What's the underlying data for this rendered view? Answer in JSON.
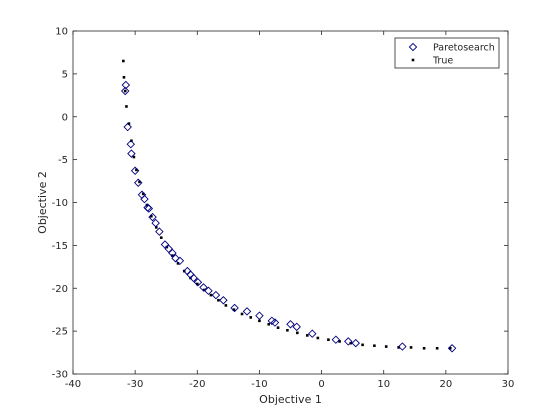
{
  "chart_data": {
    "type": "scatter",
    "xlabel": "Objective 1",
    "ylabel": "Objective 2",
    "xlim": [
      -40,
      30
    ],
    "ylim": [
      -30,
      10
    ],
    "xticks": [
      "-40",
      "-30",
      "-20",
      "-10",
      "0",
      "10",
      "20",
      "30"
    ],
    "yticks": [
      "10",
      "5",
      "0",
      "-5",
      "-10",
      "-15",
      "-20",
      "-25",
      "-30"
    ],
    "grid": false,
    "legend_position": "top-right",
    "series": [
      {
        "name": "Paretosearch",
        "marker": "diamond-open",
        "color": "#00007f",
        "points": [
          [
            -31.5,
            3.7
          ],
          [
            -31.6,
            3.0
          ],
          [
            -31.2,
            -1.2
          ],
          [
            -30.7,
            -3.2
          ],
          [
            -30.6,
            -4.3
          ],
          [
            -30.0,
            -6.3
          ],
          [
            -29.5,
            -7.7
          ],
          [
            -28.9,
            -9.1
          ],
          [
            -28.5,
            -9.6
          ],
          [
            -28.0,
            -10.6
          ],
          [
            -27.8,
            -10.7
          ],
          [
            -27.2,
            -11.7
          ],
          [
            -26.7,
            -12.4
          ],
          [
            -26.1,
            -13.4
          ],
          [
            -25.2,
            -14.9
          ],
          [
            -24.6,
            -15.4
          ],
          [
            -24.0,
            -15.9
          ],
          [
            -23.5,
            -16.5
          ],
          [
            -22.8,
            -16.8
          ],
          [
            -21.6,
            -18.0
          ],
          [
            -21.1,
            -18.4
          ],
          [
            -20.6,
            -18.8
          ],
          [
            -19.9,
            -19.3
          ],
          [
            -19.0,
            -19.9
          ],
          [
            -18.2,
            -20.3
          ],
          [
            -17.0,
            -20.8
          ],
          [
            -15.8,
            -21.4
          ],
          [
            -14.0,
            -22.3
          ],
          [
            -12.0,
            -22.7
          ],
          [
            -10.0,
            -23.2
          ],
          [
            -8.0,
            -23.8
          ],
          [
            -7.5,
            -24.0
          ],
          [
            -5.0,
            -24.2
          ],
          [
            -4.0,
            -24.5
          ],
          [
            -1.5,
            -25.3
          ],
          [
            2.3,
            -26.0
          ],
          [
            4.3,
            -26.2
          ],
          [
            5.5,
            -26.4
          ],
          [
            13.0,
            -26.8
          ],
          [
            21.0,
            -27.0
          ]
        ]
      },
      {
        "name": "True",
        "marker": "point",
        "color": "#000000",
        "points": [
          [
            -31.9,
            6.5
          ],
          [
            -31.8,
            4.6
          ],
          [
            -31.6,
            3.0
          ],
          [
            -31.4,
            1.2
          ],
          [
            -31.0,
            -0.8
          ],
          [
            -30.6,
            -2.8
          ],
          [
            -30.2,
            -4.7
          ],
          [
            -29.8,
            -6.2
          ],
          [
            -29.3,
            -7.6
          ],
          [
            -28.7,
            -9.0
          ],
          [
            -28.1,
            -10.3
          ],
          [
            -27.4,
            -11.6
          ],
          [
            -26.6,
            -12.9
          ],
          [
            -25.8,
            -14.1
          ],
          [
            -24.9,
            -15.2
          ],
          [
            -24.0,
            -16.2
          ],
          [
            -23.1,
            -17.1
          ],
          [
            -22.1,
            -18.0
          ],
          [
            -21.1,
            -18.8
          ],
          [
            -20.0,
            -19.5
          ],
          [
            -18.9,
            -20.2
          ],
          [
            -17.8,
            -20.8
          ],
          [
            -16.6,
            -21.4
          ],
          [
            -15.4,
            -22.0
          ],
          [
            -14.1,
            -22.5
          ],
          [
            -12.8,
            -23.0
          ],
          [
            -11.4,
            -23.4
          ],
          [
            -10.0,
            -23.8
          ],
          [
            -8.5,
            -24.2
          ],
          [
            -7.0,
            -24.6
          ],
          [
            -5.5,
            -24.9
          ],
          [
            -3.9,
            -25.2
          ],
          [
            -2.3,
            -25.5
          ],
          [
            -0.6,
            -25.8
          ],
          [
            1.1,
            -26.0
          ],
          [
            2.9,
            -26.2
          ],
          [
            4.7,
            -26.4
          ],
          [
            6.6,
            -26.6
          ],
          [
            8.5,
            -26.7
          ],
          [
            10.4,
            -26.8
          ],
          [
            12.4,
            -26.9
          ],
          [
            14.4,
            -26.9
          ],
          [
            16.5,
            -27.0
          ],
          [
            18.6,
            -27.0
          ],
          [
            20.7,
            -27.0
          ]
        ]
      }
    ]
  }
}
